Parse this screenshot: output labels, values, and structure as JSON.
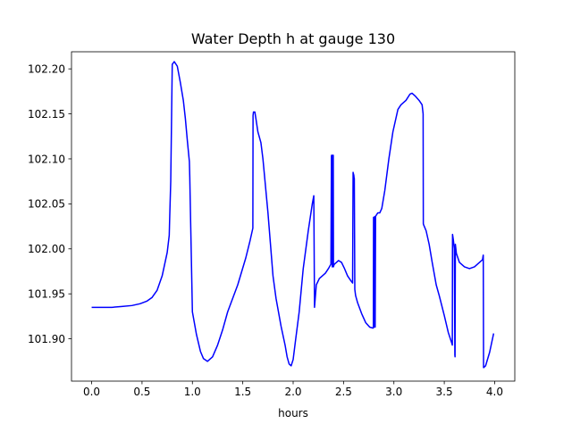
{
  "chart_data": {
    "type": "line",
    "title": "Water Depth h at gauge 130",
    "xlabel": "hours",
    "ylabel": "",
    "xlim": [
      -0.2,
      4.2
    ],
    "ylim": [
      101.853,
      102.219
    ],
    "x_ticks": [
      "0.0",
      "0.5",
      "1.0",
      "1.5",
      "2.0",
      "2.5",
      "3.0",
      "3.5",
      "4.0"
    ],
    "y_ticks": [
      "101.90",
      "101.95",
      "102.00",
      "102.05",
      "102.10",
      "102.15",
      "102.20"
    ],
    "grid": false,
    "line_color": "#0000ff",
    "series": [
      {
        "x": [
          0.0,
          0.2,
          0.3,
          0.4,
          0.48,
          0.55,
          0.6,
          0.65,
          0.7,
          0.75,
          0.77,
          0.775,
          0.785,
          0.8,
          0.82,
          0.85,
          0.88,
          0.91,
          0.93,
          0.95,
          0.97,
          0.974,
          0.978,
          1.0,
          1.04,
          1.08,
          1.11,
          1.15,
          1.2,
          1.25,
          1.3,
          1.35,
          1.45,
          1.53,
          1.57,
          1.6,
          1.602,
          1.606,
          1.62,
          1.63,
          1.65,
          1.68,
          1.7,
          1.75,
          1.8,
          1.83,
          1.88,
          1.92,
          1.94,
          1.96,
          1.98,
          2.0,
          2.02,
          2.06,
          2.1,
          2.15,
          2.19,
          2.205,
          2.212,
          2.225,
          2.23,
          2.26,
          2.29,
          2.32,
          2.35,
          2.375,
          2.38,
          2.382,
          2.388,
          2.39,
          2.398,
          2.4,
          2.405,
          2.41,
          2.42,
          2.45,
          2.48,
          2.51,
          2.54,
          2.57,
          2.59,
          2.595,
          2.599,
          2.602,
          2.604,
          2.607,
          2.612,
          2.62,
          2.64,
          2.68,
          2.72,
          2.76,
          2.79,
          2.796,
          2.798,
          2.801,
          2.806,
          2.81,
          2.814,
          2.818,
          2.823,
          2.84,
          2.86,
          2.88,
          2.91,
          2.95,
          2.99,
          3.04,
          3.07,
          3.12,
          3.16,
          3.18,
          3.21,
          3.25,
          3.28,
          3.29,
          3.292,
          3.294,
          3.32,
          3.35,
          3.38,
          3.42,
          3.45,
          3.5,
          3.54,
          3.575,
          3.58,
          3.582,
          3.59,
          3.6,
          3.605,
          3.607,
          3.61,
          3.62,
          3.65,
          3.7,
          3.75,
          3.8,
          3.85,
          3.88,
          3.885,
          3.887,
          3.89,
          3.91,
          3.95,
          3.99
        ],
        "y": [
          101.935,
          101.935,
          101.936,
          101.937,
          101.939,
          101.942,
          101.946,
          101.954,
          101.97,
          101.996,
          102.015,
          102.036,
          102.075,
          102.205,
          102.208,
          102.203,
          102.185,
          102.165,
          102.145,
          102.12,
          102.097,
          102.08,
          102.056,
          101.93,
          101.905,
          101.886,
          101.878,
          101.875,
          101.88,
          101.893,
          101.91,
          101.93,
          101.96,
          101.99,
          102.008,
          102.023,
          102.148,
          102.152,
          102.152,
          102.145,
          102.13,
          102.118,
          102.1,
          102.04,
          101.97,
          101.945,
          101.914,
          101.893,
          101.88,
          101.872,
          101.87,
          101.877,
          101.895,
          101.93,
          101.978,
          102.02,
          102.05,
          102.059,
          101.935,
          101.953,
          101.96,
          101.967,
          101.97,
          101.973,
          101.978,
          101.983,
          102.103,
          102.104,
          101.98,
          102.104,
          102.104,
          101.98,
          101.982,
          101.983,
          101.984,
          101.987,
          101.985,
          101.978,
          101.97,
          101.965,
          101.962,
          102.085,
          102.083,
          102.082,
          102.08,
          102.078,
          101.955,
          101.948,
          101.94,
          101.928,
          101.918,
          101.913,
          101.912,
          101.912,
          102.035,
          101.913,
          102.035,
          102.036,
          101.913,
          102.036,
          102.037,
          102.04,
          102.04,
          102.045,
          102.065,
          102.1,
          102.13,
          102.155,
          102.16,
          102.165,
          102.172,
          102.173,
          102.17,
          102.165,
          102.16,
          102.15,
          102.028,
          102.027,
          102.02,
          102.005,
          101.985,
          101.96,
          101.948,
          101.926,
          101.907,
          101.895,
          101.893,
          102.016,
          102.01,
          102.0,
          101.882,
          101.88,
          102.005,
          101.995,
          101.985,
          101.98,
          101.978,
          101.98,
          101.985,
          101.988,
          101.992,
          101.993,
          101.868,
          101.87,
          101.885,
          101.906
        ]
      }
    ]
  }
}
